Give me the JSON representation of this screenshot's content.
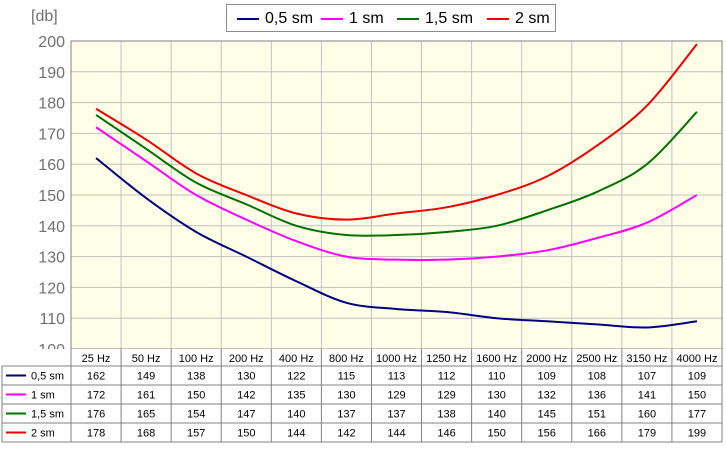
{
  "chart_data": {
    "type": "line",
    "ylabel": "[db]",
    "ylim": [
      100,
      200
    ],
    "yticks": [
      "100",
      "110",
      "120",
      "130",
      "140",
      "150",
      "160",
      "170",
      "180",
      "190",
      "200"
    ],
    "categories": [
      "25 Hz",
      "50 Hz",
      "100 Hz",
      "200 Hz",
      "400 Hz",
      "800 Hz",
      "1000 Hz",
      "1250 Hz",
      "1600 Hz",
      "2000 Hz",
      "2500 Hz",
      "3150 Hz",
      "4000 Hz"
    ],
    "grid": true,
    "legend_position": "top",
    "series": [
      {
        "name": "0,5 sm",
        "color": "#000080",
        "values": [
          162,
          149,
          138,
          130,
          122,
          115,
          113,
          112,
          110,
          109,
          108,
          107,
          109
        ]
      },
      {
        "name": "1 sm",
        "color": "#ff00ff",
        "values": [
          172,
          161,
          150,
          142,
          135,
          130,
          129,
          129,
          130,
          132,
          136,
          141,
          150
        ]
      },
      {
        "name": "1,5 sm",
        "color": "#007000",
        "values": [
          176,
          165,
          154,
          147,
          140,
          137,
          137,
          138,
          140,
          145,
          151,
          160,
          177
        ]
      },
      {
        "name": "2 sm",
        "color": "#ee0000",
        "values": [
          178,
          168,
          157,
          150,
          144,
          142,
          144,
          146,
          150,
          156,
          166,
          179,
          199
        ]
      }
    ]
  }
}
